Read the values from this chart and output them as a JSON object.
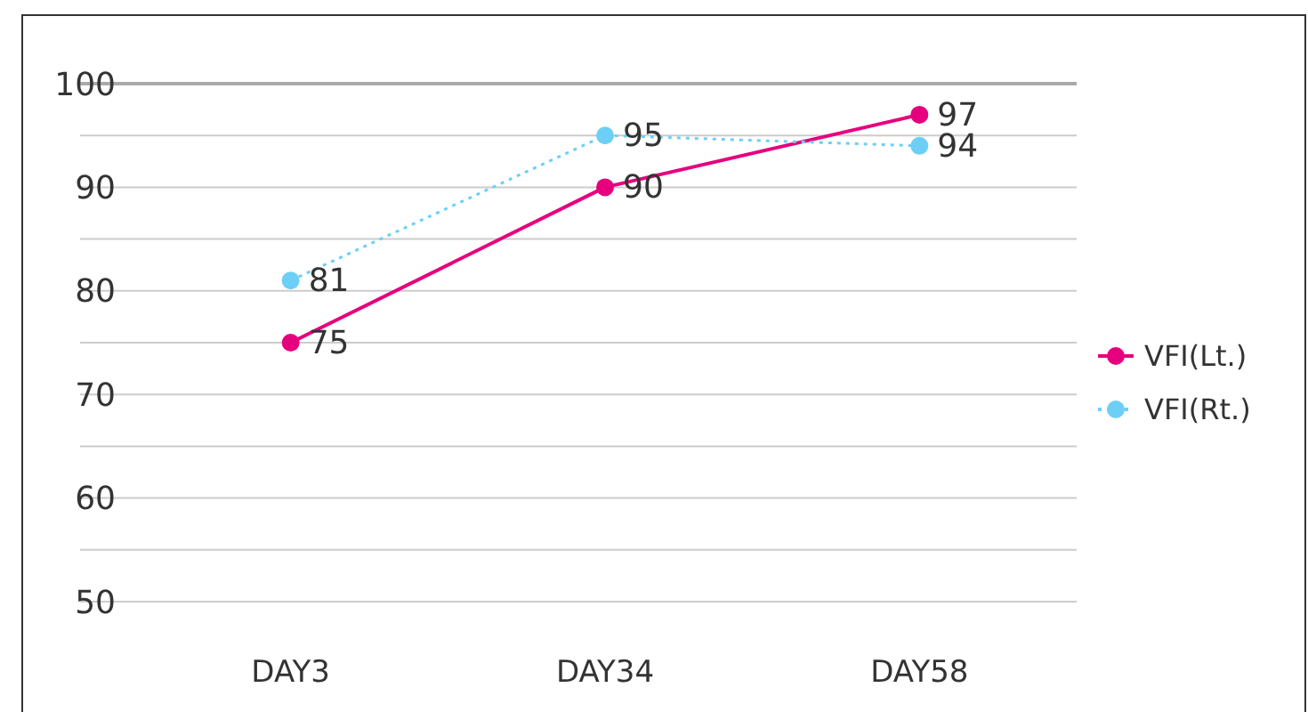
{
  "chart_data": {
    "type": "line",
    "categories": [
      "DAY3",
      "DAY34",
      "DAY58"
    ],
    "series": [
      {
        "name": "VFI(Lt.)",
        "color": "#e6007e",
        "values": [
          75,
          90,
          97
        ],
        "line_style": "solid"
      },
      {
        "name": "VFI(Rt.)",
        "color": "#6dcff6",
        "values": [
          81,
          95,
          94
        ],
        "line_style": "dotted"
      }
    ],
    "ylim": [
      50,
      100
    ],
    "yticks": [
      50,
      {
        "value": 55,
        "label": null
      },
      60,
      {
        "value": 65,
        "label": null
      },
      70,
      {
        "value": 75,
        "label": null
      },
      80,
      {
        "value": 85,
        "label": null
      },
      90,
      {
        "value": 95,
        "label": null
      },
      100
    ],
    "grid": "y",
    "legend": "right",
    "marker": "circle",
    "data_labels": true
  }
}
